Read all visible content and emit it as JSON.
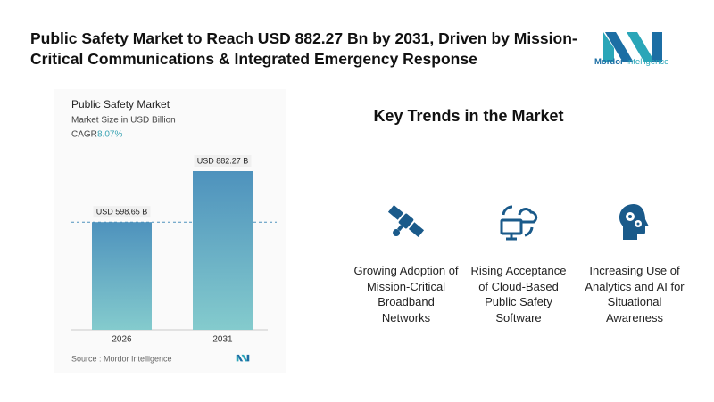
{
  "header": {
    "title": "Public Safety Market to Reach USD 882.27 Bn by 2031, Driven by Mission-Critical Communications & Integrated Emergency Response",
    "logo_name": "Mordor",
    "logo_suffix": "Intelligence"
  },
  "chart_data": {
    "type": "bar",
    "title": "Public Safety Market",
    "subtitle": "Market Size in USD Billion",
    "cagr_label": "CAGR",
    "cagr": "8.07%",
    "categories": [
      "2026",
      "2031"
    ],
    "values": [
      598.65,
      882.27
    ],
    "value_labels": [
      "USD 598.65 B",
      "USD 882.27 B"
    ],
    "color": "#4e92bd",
    "source": "Source :  Mordor Intelligence"
  },
  "key_trends": {
    "title": "Key Trends in the Market",
    "items": [
      {
        "label": "Growing Adoption of Mission-Critical Broadband Networks"
      },
      {
        "label": "Rising Acceptance of Cloud-Based Public Safety Software"
      },
      {
        "label": "Increasing Use of Analytics and AI for Situational Awareness"
      }
    ]
  }
}
